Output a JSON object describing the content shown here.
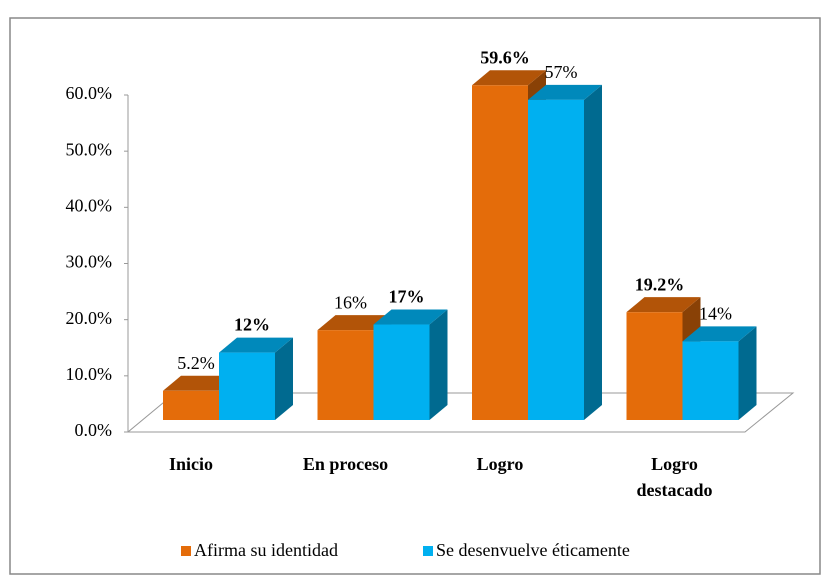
{
  "chart_data": {
    "type": "bar3d",
    "categories": [
      "Inicio",
      "En proceso",
      "Logro",
      "Logro destacado"
    ],
    "series": [
      {
        "name": "Afirma su identidad",
        "color": "#e46c0a",
        "values": [
          5.2,
          16,
          59.6,
          19.2
        ],
        "value_labels": [
          "5.2%",
          "16%",
          "59.6%",
          "19.2%"
        ]
      },
      {
        "name": "Se desenvuelve éticamente",
        "color": "#00b0f0",
        "values": [
          12,
          17,
          57,
          14
        ],
        "value_labels": [
          "12%",
          "17%",
          "57%",
          "14%"
        ]
      }
    ],
    "ylim": [
      0,
      60
    ],
    "yticks": [
      {
        "value": 0,
        "label": "0.0%"
      },
      {
        "value": 10,
        "label": "10.0%"
      },
      {
        "value": 20,
        "label": "20.0%"
      },
      {
        "value": 30,
        "label": "30.0%"
      },
      {
        "value": 40,
        "label": "40.0%"
      },
      {
        "value": 50,
        "label": "50.0%"
      },
      {
        "value": 60,
        "label": "60.0%"
      }
    ],
    "legend": "bottom"
  }
}
